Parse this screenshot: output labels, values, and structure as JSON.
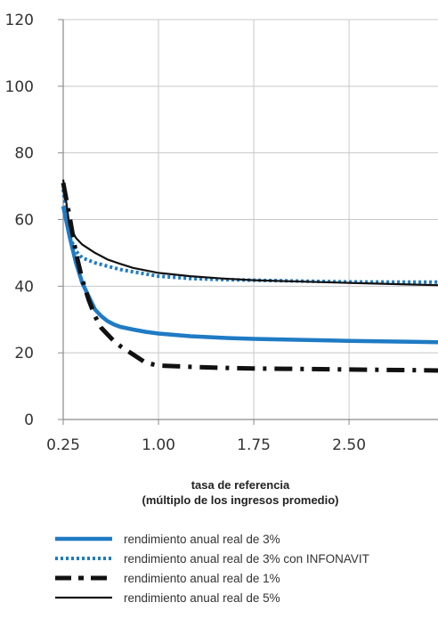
{
  "chart_data": {
    "type": "line",
    "title": "",
    "xlabel": "tasa de referencia",
    "xlabel_line2": "(múltiplo de los ingresos promedio)",
    "ylabel": "",
    "xlim": [
      0.25,
      3.2
    ],
    "ylim": [
      0,
      120
    ],
    "x_ticks": [
      0.25,
      1.0,
      1.75,
      2.5
    ],
    "x_tick_labels": [
      "0.25",
      "1.00",
      "1.75",
      "2.50"
    ],
    "y_ticks": [
      0,
      20,
      40,
      60,
      80,
      100,
      120
    ],
    "y_tick_labels": [
      "0",
      "20",
      "40",
      "60",
      "80",
      "100",
      "120"
    ],
    "grid": {
      "horizontal": true,
      "vertical": true
    },
    "legend_position": "bottom",
    "series": [
      {
        "name": "rendimiento anual real de 3%",
        "style": "solid-thick",
        "color": "#1f7bc4",
        "x": [
          0.25,
          0.3,
          0.35,
          0.4,
          0.45,
          0.5,
          0.55,
          0.6,
          0.65,
          0.7,
          0.8,
          0.9,
          1.0,
          1.25,
          1.5,
          1.75,
          2.0,
          2.5,
          3.0,
          3.2
        ],
        "y": [
          64,
          55,
          47,
          41,
          37,
          33,
          31,
          29.5,
          28.5,
          27.8,
          27.0,
          26.3,
          25.8,
          25.0,
          24.5,
          24.2,
          24.0,
          23.6,
          23.3,
          23.2
        ]
      },
      {
        "name": "rendimiento anual real de 3% con INFONAVIT",
        "style": "dotted",
        "color": "#1f7bc4",
        "x": [
          0.25,
          0.3,
          0.35,
          0.4,
          0.5,
          0.6,
          0.7,
          0.8,
          1.0,
          1.25,
          1.5,
          1.75,
          2.0,
          2.5,
          3.0,
          3.2
        ],
        "y": [
          69,
          55,
          50.5,
          48.5,
          47,
          46,
          45,
          44.3,
          43,
          42.3,
          42,
          41.8,
          41.6,
          41.3,
          41.2,
          41.2
        ]
      },
      {
        "name": "rendimiento anual real de 1%",
        "style": "dash-dot-thick",
        "color": "#111111",
        "x": [
          0.25,
          0.3,
          0.35,
          0.4,
          0.45,
          0.5,
          0.55,
          0.6,
          0.65,
          0.7,
          0.8,
          0.9,
          1.0,
          1.25,
          1.5,
          1.75,
          2.0,
          2.5,
          3.0,
          3.2
        ],
        "y": [
          71,
          61,
          50,
          42,
          36,
          31,
          27.5,
          25.5,
          23.5,
          22,
          19.5,
          17,
          16.2,
          15.8,
          15.5,
          15.3,
          15.2,
          15.0,
          14.8,
          14.7
        ]
      },
      {
        "name": "rendimiento anual real de 5%",
        "style": "solid-thin",
        "color": "#111111",
        "x": [
          0.25,
          0.3,
          0.35,
          0.4,
          0.5,
          0.6,
          0.7,
          0.8,
          1.0,
          1.25,
          1.5,
          1.75,
          2.0,
          2.5,
          3.0,
          3.2
        ],
        "y": [
          72,
          58,
          54.5,
          52.5,
          50,
          48,
          46.7,
          45.5,
          44,
          43,
          42.3,
          41.8,
          41.5,
          41,
          40.5,
          40.3
        ]
      }
    ]
  }
}
